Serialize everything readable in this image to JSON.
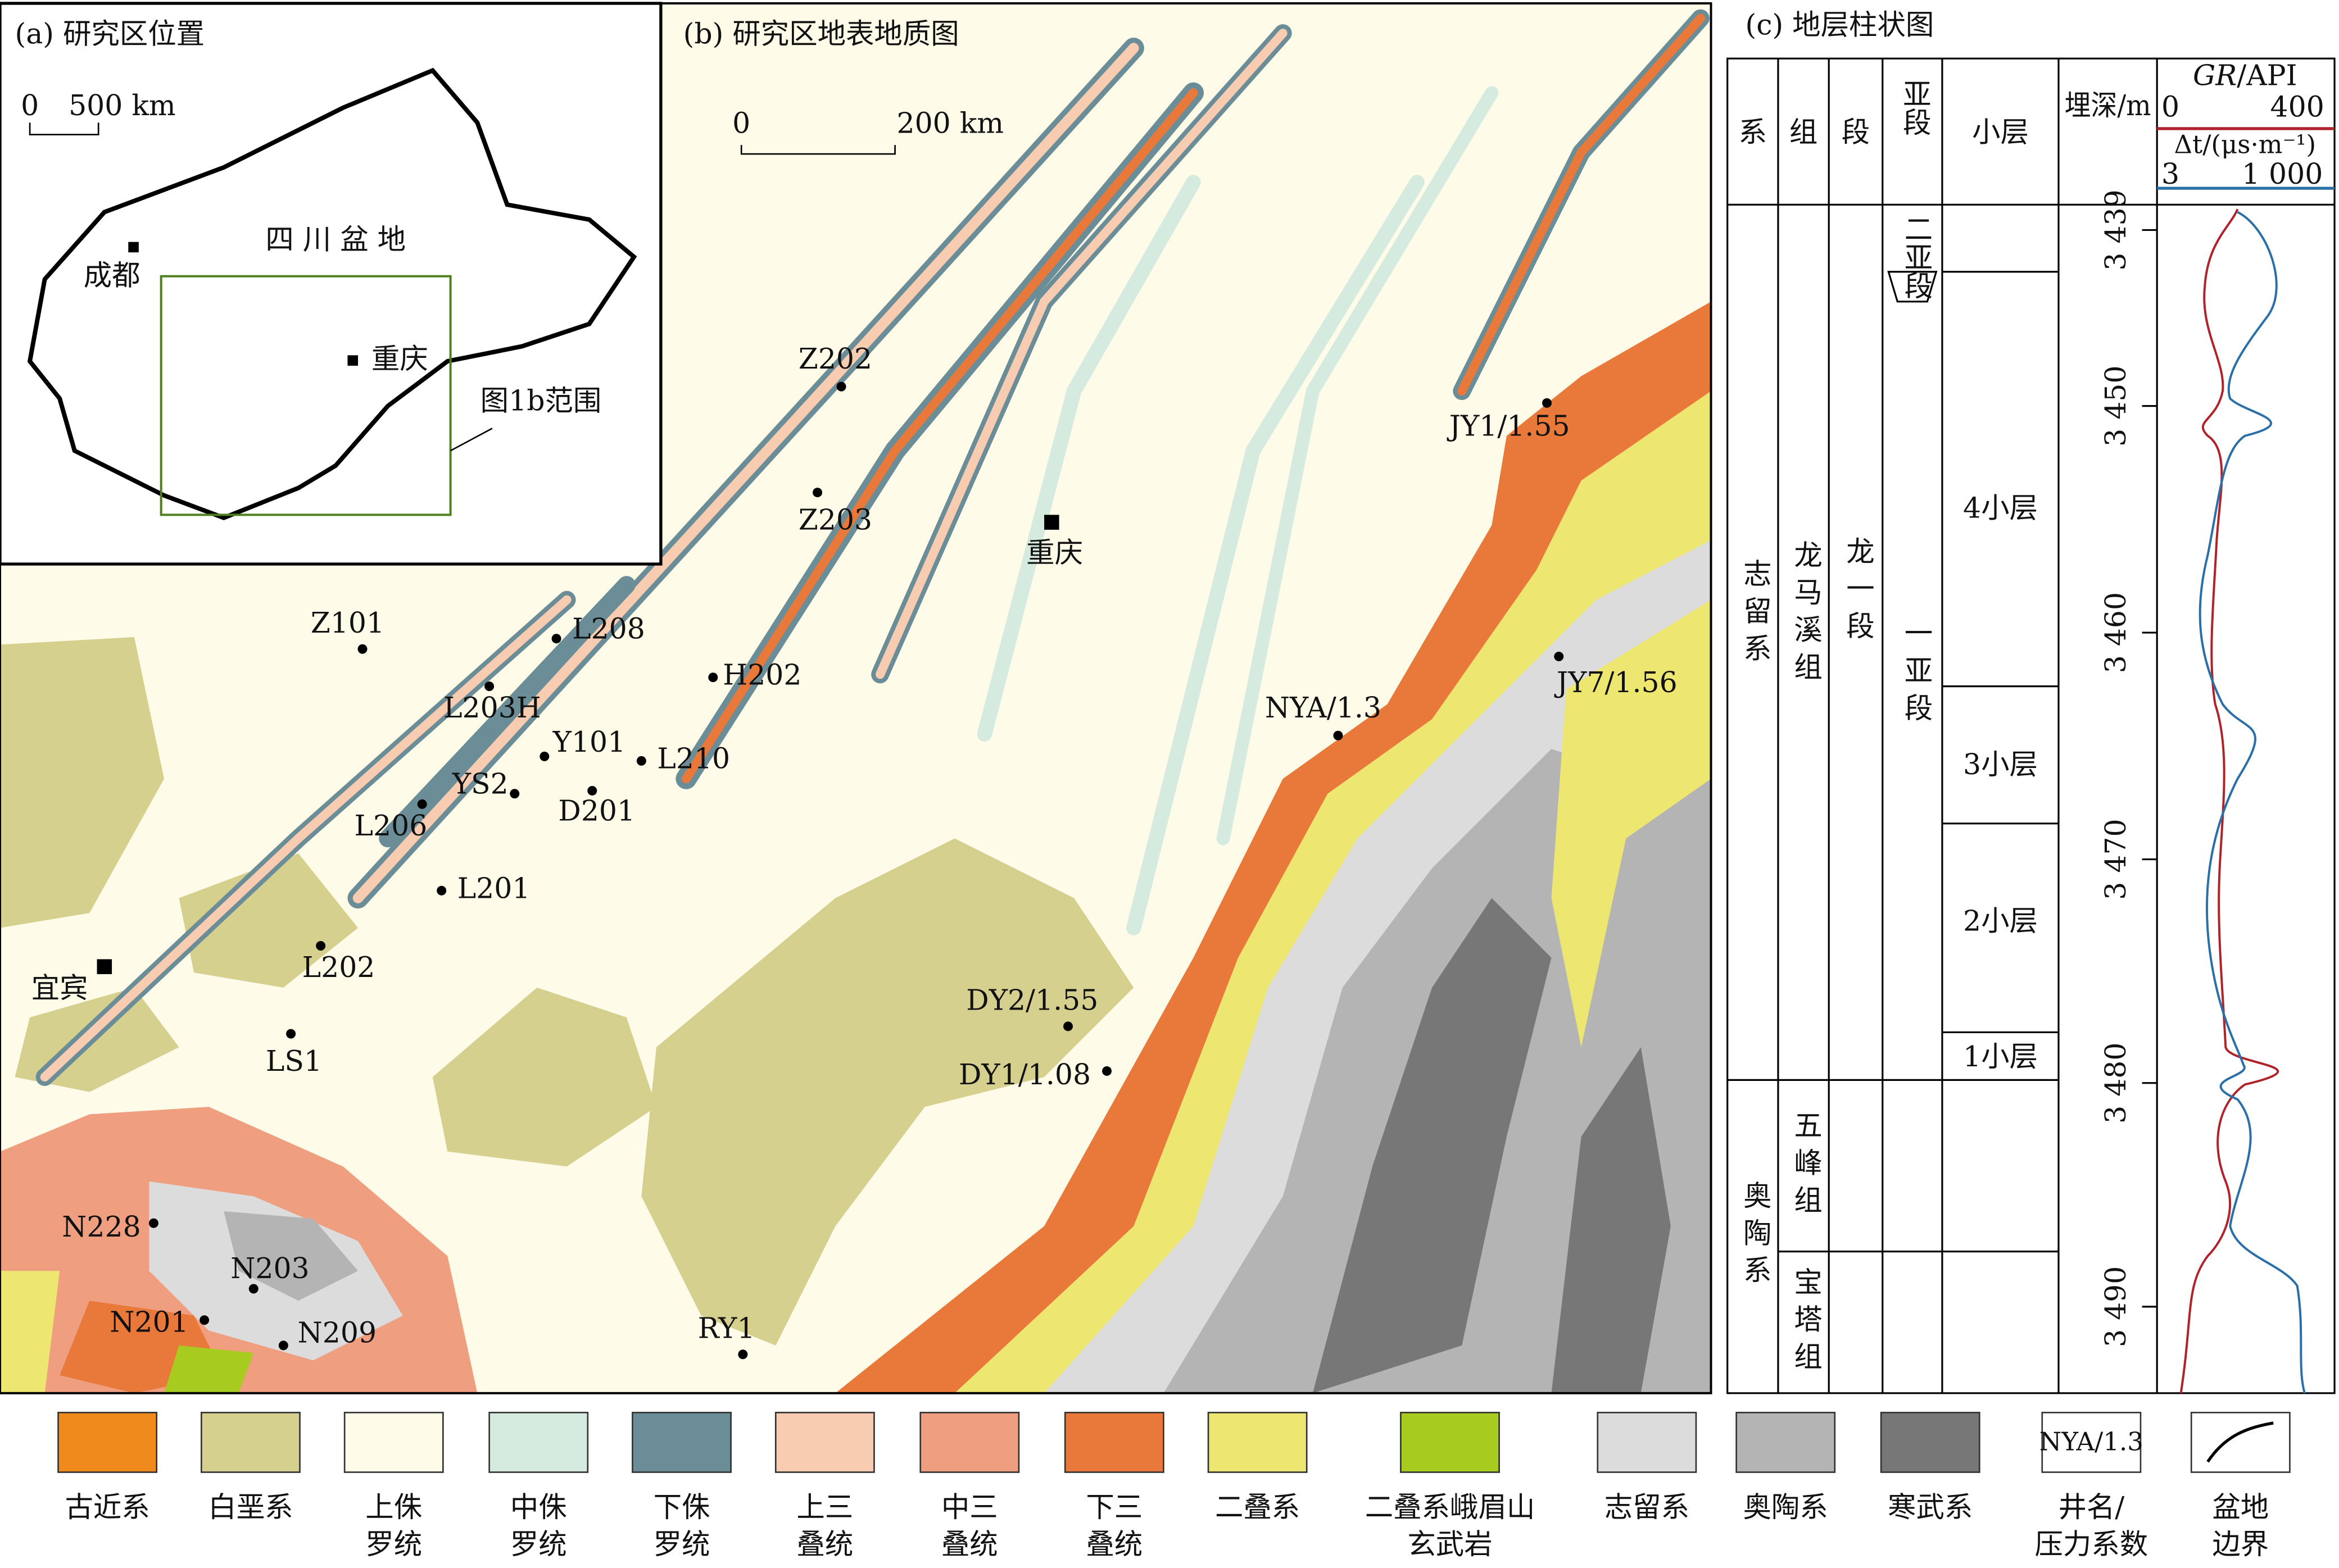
{
  "panel_a": {
    "title": "(a) 研究区位置",
    "scale": [
      "0",
      "500 km"
    ],
    "basin": "四 川 盆 地",
    "cities": [
      "成都",
      "重庆"
    ],
    "extent_label": "图1b范围"
  },
  "panel_b": {
    "title": "(b) 研究区地表地质图",
    "scale": [
      "0",
      "200 km"
    ],
    "cities": [
      {
        "name": "重庆"
      },
      {
        "name": "宜宾"
      }
    ],
    "wells": [
      {
        "label": "Z202"
      },
      {
        "label": "Z203"
      },
      {
        "label": "JY1/1.55"
      },
      {
        "label": "Z101"
      },
      {
        "label": "L208"
      },
      {
        "label": "H202"
      },
      {
        "label": "L203H"
      },
      {
        "label": "Y101"
      },
      {
        "label": "L210"
      },
      {
        "label": "YS2"
      },
      {
        "label": "D201"
      },
      {
        "label": "L206"
      },
      {
        "label": "L201"
      },
      {
        "label": "NYA/1.3"
      },
      {
        "label": "JY7/1.56"
      },
      {
        "label": "L202"
      },
      {
        "label": "LS1"
      },
      {
        "label": "DY2/1.55"
      },
      {
        "label": "DY1/1.08"
      },
      {
        "label": "N228"
      },
      {
        "label": "N203"
      },
      {
        "label": "N201"
      },
      {
        "label": "N209"
      },
      {
        "label": "RY1"
      }
    ]
  },
  "panel_c": {
    "title": "(c) 地层柱状图",
    "headers": [
      "系",
      "组",
      "段",
      "亚段",
      "小层",
      "埋深/m"
    ],
    "gr": {
      "name": "GR",
      "unit": "/API",
      "min": "0",
      "max": "400"
    },
    "dt": {
      "label": "Δt/(μs·m⁻¹)",
      "min": "3",
      "max": "1 000"
    },
    "systems": [
      "志留系",
      "奥陶系"
    ],
    "formations": [
      "龙马溪组",
      "五峰组",
      "宝塔组"
    ],
    "member": "龙一段",
    "submembers": [
      "二亚段",
      "一亚段"
    ],
    "layers": [
      "4小层",
      "3小层",
      "2小层",
      "1小层"
    ],
    "depths": [
      "3 439",
      "3 450",
      "3 460",
      "3 470",
      "3 480",
      "3 490"
    ]
  },
  "legend": [
    {
      "lines": [
        "古近系"
      ],
      "color": "#f08a1c"
    },
    {
      "lines": [
        "白垩系"
      ],
      "color": "#d6d08f"
    },
    {
      "lines": [
        "上侏",
        "罗统"
      ],
      "color": "#fefbe9"
    },
    {
      "lines": [
        "中侏",
        "罗统"
      ],
      "color": "#d5ebe0"
    },
    {
      "lines": [
        "下侏",
        "罗统"
      ],
      "color": "#6a8d97"
    },
    {
      "lines": [
        "上三",
        "叠统"
      ],
      "color": "#f7ccb0"
    },
    {
      "lines": [
        "中三",
        "叠统"
      ],
      "color": "#ef9f80"
    },
    {
      "lines": [
        "下三",
        "叠统"
      ],
      "color": "#e8793a"
    },
    {
      "lines": [
        "二叠系"
      ],
      "color": "#ede772"
    },
    {
      "lines": [
        "二叠系峨眉山",
        "玄武岩"
      ],
      "color": "#a8cb1f"
    },
    {
      "lines": [
        "志留系"
      ],
      "color": "#dcdcdc"
    },
    {
      "lines": [
        "奥陶系"
      ],
      "color": "#b4b4b4"
    },
    {
      "lines": [
        "寒武系"
      ],
      "color": "#777777"
    },
    {
      "lines": [
        "井名/",
        "压力系数"
      ],
      "sample": "NYA/1.3"
    },
    {
      "lines": [
        "盆地",
        "边界"
      ]
    }
  ]
}
